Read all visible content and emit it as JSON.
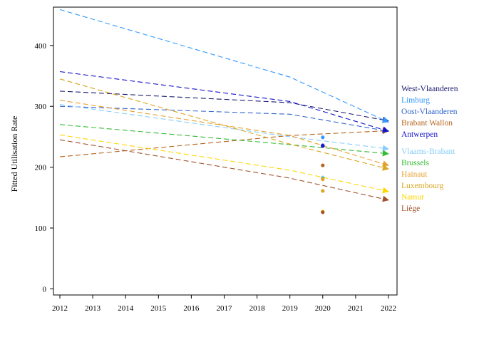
{
  "chart_data": {
    "type": "line",
    "title": "",
    "xlabel": "",
    "ylabel": "Fitted Utilisation Rate",
    "xlim": [
      2012,
      2022
    ],
    "ylim": [
      -10,
      463
    ],
    "x_ticks": [
      2012,
      2013,
      2014,
      2015,
      2016,
      2017,
      2018,
      2019,
      2020,
      2021,
      2022
    ],
    "y_ticks": [
      0,
      100,
      200,
      300,
      400
    ],
    "grid": false,
    "legend_placement": "right",
    "series": [
      {
        "name": "West-Vlaanderen",
        "color": "#191970",
        "x": [
          2012,
          2019,
          2022
        ],
        "y": [
          325,
          306,
          276
        ],
        "point_2020": 235
      },
      {
        "name": "Limburg",
        "color": "#3399FF",
        "x": [
          2012,
          2019,
          2022
        ],
        "y": [
          459,
          348,
          274
        ],
        "point_2020": 249
      },
      {
        "name": "Oost-Vlaanderen",
        "color": "#3366CC",
        "x": [
          2012,
          2019,
          2022
        ],
        "y": [
          300,
          287,
          259
        ],
        "point_2020": 236
      },
      {
        "name": "Brabant Wallon",
        "color": "#B5651D",
        "x": [
          2012,
          2019,
          2022
        ],
        "y": [
          217,
          252,
          260
        ],
        "point_2020": 203
      },
      {
        "name": "Antwerpen",
        "color": "#1515CC",
        "x": [
          2012,
          2019,
          2022
        ],
        "y": [
          357,
          308,
          259
        ],
        "point_2020": 235
      },
      {
        "name": "Vlaams-Brabant",
        "color": "#87CEFA",
        "x": [
          2012,
          2019,
          2022
        ],
        "y": [
          303,
          250,
          230
        ],
        "point_2020": 183
      },
      {
        "name": "Brussels",
        "color": "#33BB33",
        "x": [
          2012,
          2019,
          2022
        ],
        "y": [
          270,
          237,
          222
        ],
        "point_2020": 181
      },
      {
        "name": "Hainaut",
        "color": "#E8A030",
        "x": [
          2012,
          2019,
          2022
        ],
        "y": [
          310,
          252,
          203
        ],
        "point_2020": 180
      },
      {
        "name": "Luxembourg",
        "color": "#DAA520",
        "x": [
          2012,
          2019,
          2022
        ],
        "y": [
          345,
          238,
          197
        ],
        "point_2020": 161
      },
      {
        "name": "Namur",
        "color": "#FFD700",
        "x": [
          2012,
          2019,
          2022
        ],
        "y": [
          253,
          195,
          160
        ],
        "point_2020": 127
      },
      {
        "name": "Liège",
        "color": "#A0522D",
        "x": [
          2012,
          2019,
          2022
        ],
        "y": [
          245,
          182,
          146
        ],
        "point_2020": 126
      }
    ]
  }
}
